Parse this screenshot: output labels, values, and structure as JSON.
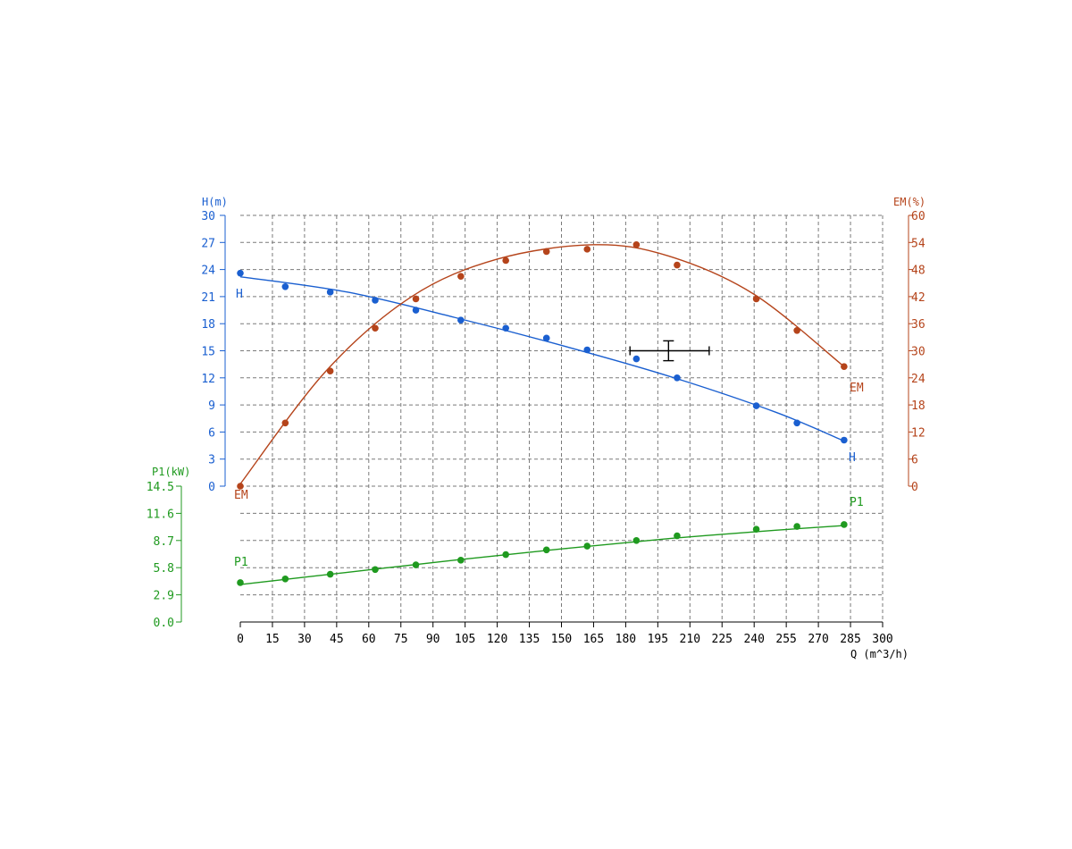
{
  "chart_data": {
    "type": "line",
    "grid": true,
    "colors": {
      "H": "#1a5fd0",
      "EM": "#b5441b",
      "P1": "#1f9a1f",
      "grid": "#7a7a7a",
      "axis": "#000000",
      "marker": "#000000"
    },
    "x_axis": {
      "label": "Q (m^3/h)",
      "range": [
        0,
        300
      ],
      "ticks": [
        "0",
        "15",
        "30",
        "45",
        "60",
        "75",
        "90",
        "105",
        "120",
        "135",
        "150",
        "165",
        "180",
        "195",
        "210",
        "225",
        "240",
        "255",
        "270",
        "285",
        "300"
      ]
    },
    "left_axis_h": {
      "label": "H(m)",
      "range": [
        0,
        30
      ],
      "ticks": [
        "0",
        "3",
        "6",
        "9",
        "12",
        "15",
        "18",
        "21",
        "24",
        "27",
        "30"
      ]
    },
    "right_axis_em": {
      "label": "EM(%)",
      "range": [
        0,
        60
      ],
      "ticks": [
        "0",
        "6",
        "12",
        "18",
        "24",
        "30",
        "36",
        "42",
        "48",
        "54",
        "60"
      ]
    },
    "left_axis_p1": {
      "label": "P1(kW)",
      "range": [
        0,
        14.5
      ],
      "ticks": [
        "0.0",
        "2.9",
        "5.8",
        "8.7",
        "11.6",
        "14.5"
      ]
    },
    "series": [
      {
        "name": "H",
        "axis": "H",
        "points": [
          [
            0,
            23.6
          ],
          [
            21,
            22.1
          ],
          [
            42,
            21.5
          ],
          [
            63,
            20.6
          ],
          [
            82,
            19.5
          ],
          [
            103,
            18.4
          ],
          [
            124,
            17.5
          ],
          [
            143,
            16.4
          ],
          [
            162,
            15.1
          ],
          [
            185,
            14.1
          ],
          [
            204,
            12.0
          ],
          [
            241,
            8.9
          ],
          [
            260,
            7.0
          ],
          [
            282,
            5.1
          ]
        ],
        "curve": [
          [
            0,
            23.2
          ],
          [
            50,
            21.5
          ],
          [
            100,
            18.7
          ],
          [
            150,
            15.6
          ],
          [
            200,
            12.2
          ],
          [
            250,
            8.2
          ],
          [
            282,
            5.0
          ]
        ],
        "labels": [
          "H",
          "H"
        ]
      },
      {
        "name": "EM",
        "axis": "EM",
        "points": [
          [
            0,
            0
          ],
          [
            21,
            14
          ],
          [
            42,
            25.5
          ],
          [
            63,
            35
          ],
          [
            82,
            41.5
          ],
          [
            103,
            46.5
          ],
          [
            124,
            50
          ],
          [
            143,
            52
          ],
          [
            162,
            52.5
          ],
          [
            185,
            53.5
          ],
          [
            204,
            49
          ],
          [
            241,
            41.5
          ],
          [
            260,
            34.5
          ],
          [
            282,
            26.5
          ]
        ],
        "curve": [
          [
            0,
            0.5
          ],
          [
            40,
            25.5
          ],
          [
            80,
            42
          ],
          [
            120,
            50.3
          ],
          [
            165,
            53.5
          ],
          [
            200,
            51
          ],
          [
            240,
            42.5
          ],
          [
            282,
            26.5
          ]
        ],
        "labels": [
          "EM",
          "EM"
        ]
      },
      {
        "name": "P1",
        "axis": "P1",
        "points": [
          [
            0,
            4.2
          ],
          [
            21,
            4.6
          ],
          [
            42,
            5.1
          ],
          [
            63,
            5.6
          ],
          [
            82,
            6.1
          ],
          [
            103,
            6.6
          ],
          [
            124,
            7.2
          ],
          [
            143,
            7.7
          ],
          [
            162,
            8.1
          ],
          [
            185,
            8.7
          ],
          [
            204,
            9.2
          ],
          [
            241,
            9.9
          ],
          [
            260,
            10.2
          ],
          [
            282,
            10.4
          ]
        ],
        "curve": [
          [
            0,
            4.0
          ],
          [
            50,
            5.3
          ],
          [
            100,
            6.6
          ],
          [
            150,
            7.8
          ],
          [
            200,
            8.9
          ],
          [
            250,
            9.8
          ],
          [
            282,
            10.3
          ]
        ],
        "labels": [
          "P1",
          "P1"
        ]
      }
    ],
    "duty_point_marker": {
      "q": 200,
      "h": 15,
      "q_range": [
        182,
        219
      ],
      "h_range": [
        13.9,
        16.1
      ]
    }
  }
}
